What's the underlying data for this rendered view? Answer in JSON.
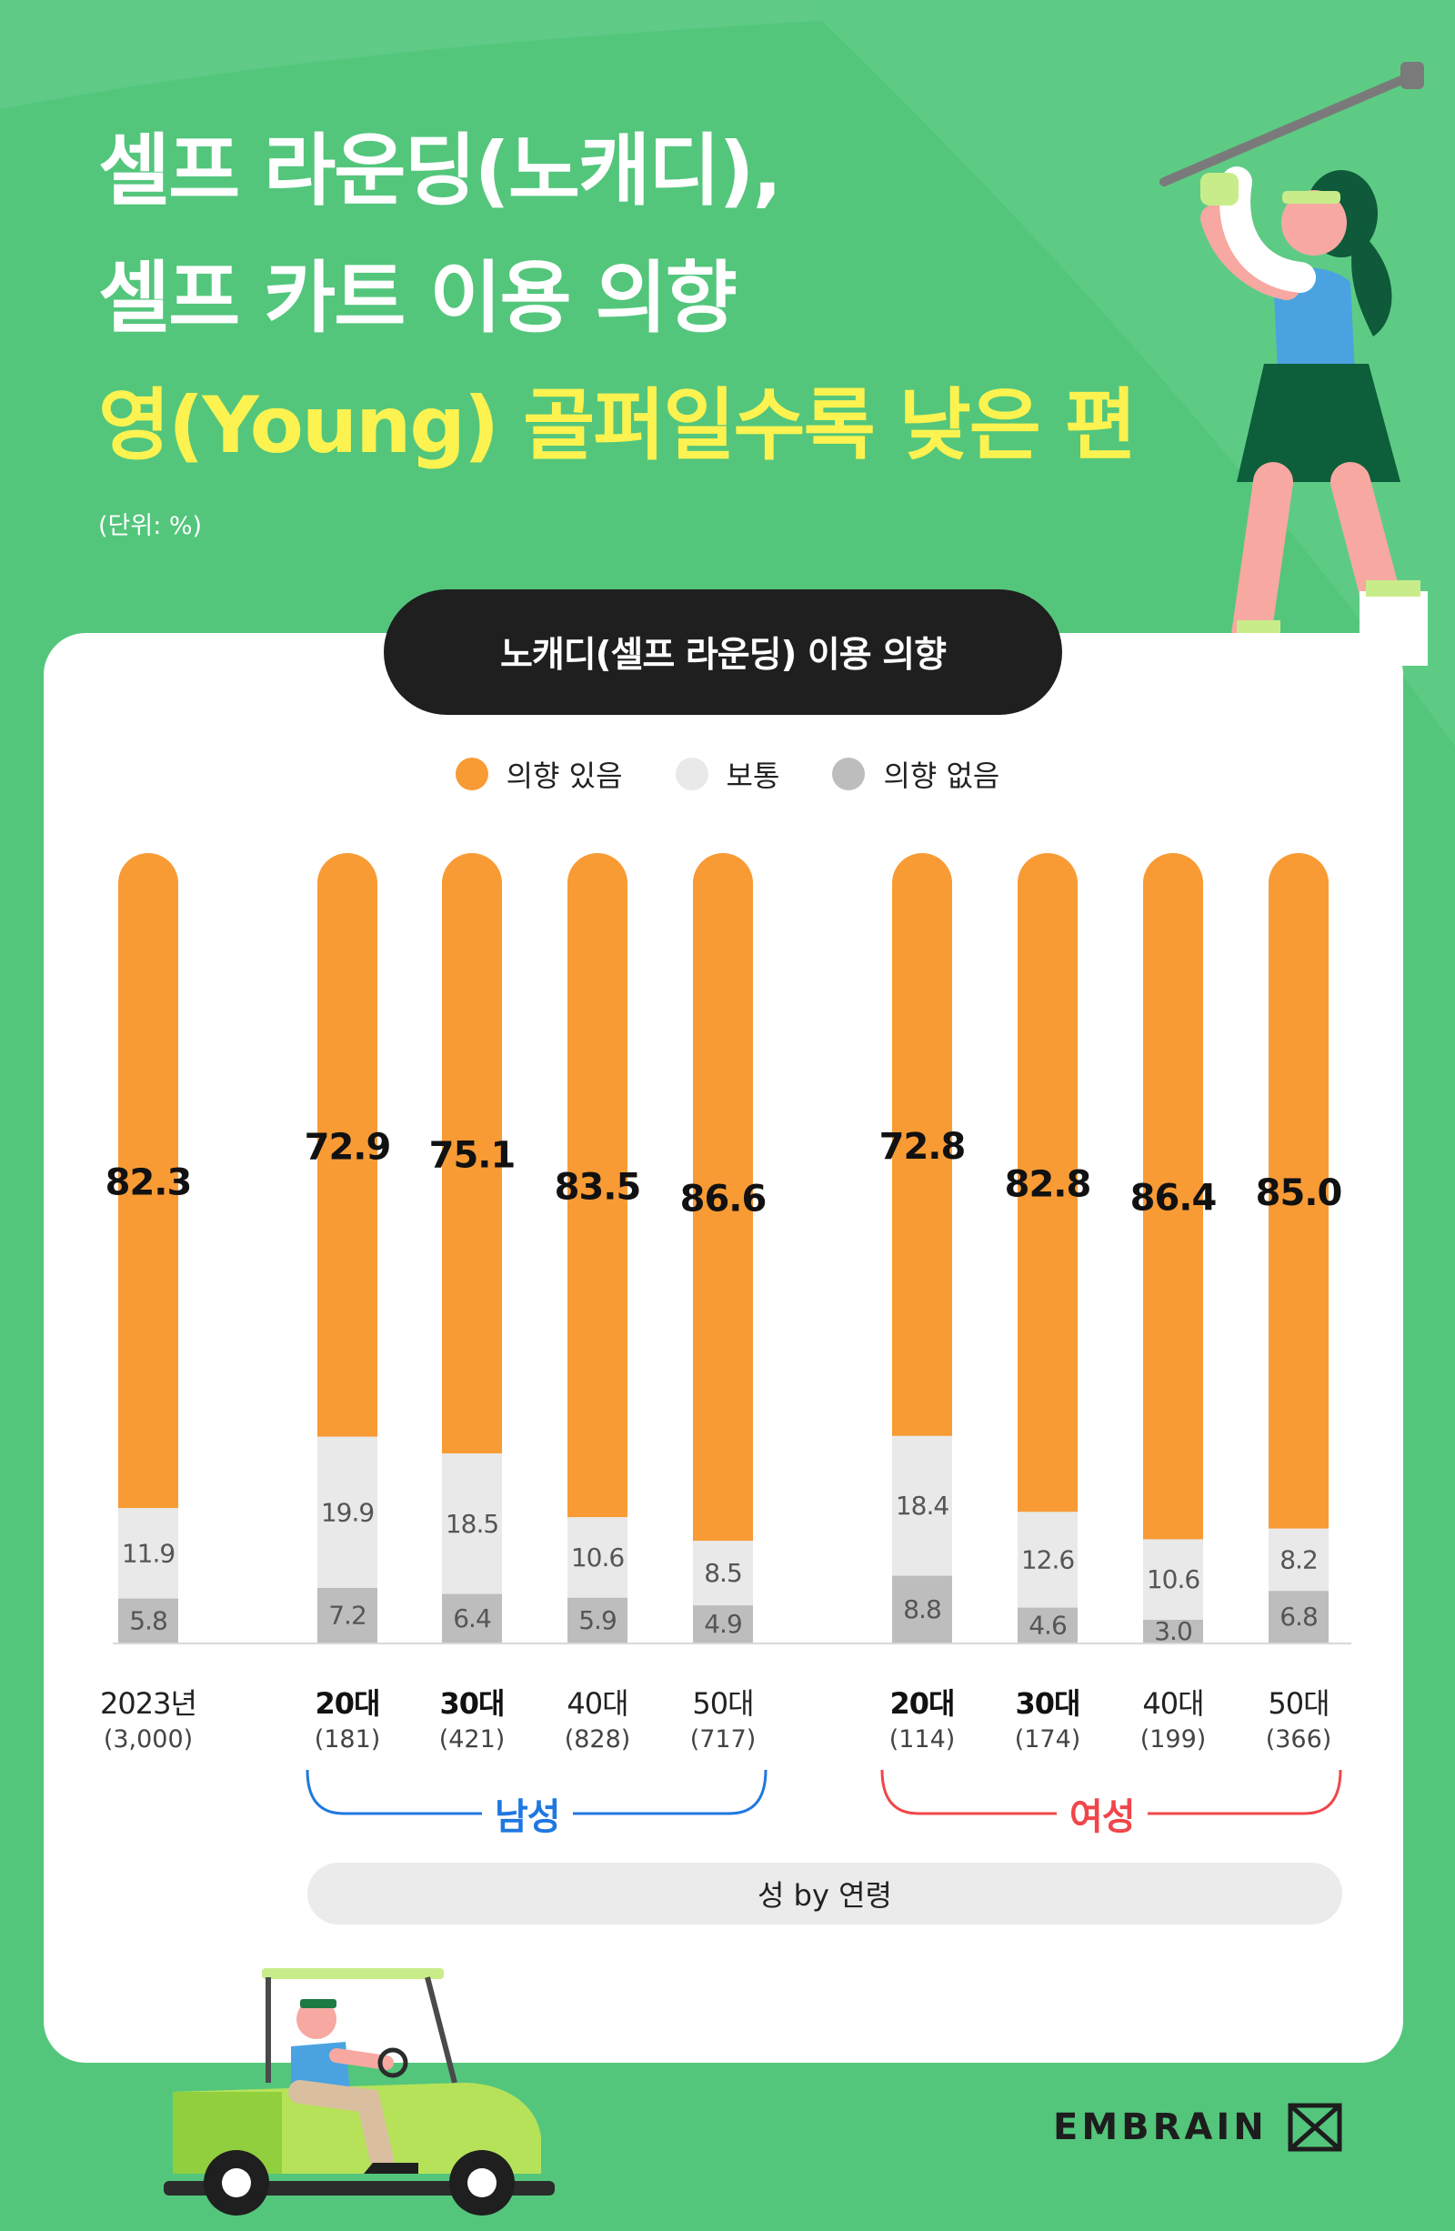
{
  "title": {
    "line1": "셀프 라운딩(노캐디),",
    "line2": "셀프 카트 이용 의향",
    "line3": "영(Young) 골퍼일수록 낮은 편"
  },
  "unit_note": "(단위: %)",
  "panel_title": "노캐디(셀프 라운딩) 이용 의향",
  "caption": "성 by 연령",
  "logo_text": "EMBRAIN",
  "colors": {
    "yes": "#f89b35",
    "neutral": "#e9e9e9",
    "no": "#bdbdbd",
    "male": "#1f78e0",
    "female": "#f0464a",
    "background": "#53c67c"
  },
  "chart_data": {
    "type": "bar",
    "stacked": true,
    "ylim": [
      0,
      100
    ],
    "grid": false,
    "legend_position": "top-center",
    "categories": [
      "2023년",
      "20대",
      "30대",
      "40대",
      "50대",
      "20대",
      "30대",
      "40대",
      "50대"
    ],
    "sample_sizes": [
      "(3,000)",
      "(181)",
      "(421)",
      "(828)",
      "(717)",
      "(114)",
      "(174)",
      "(199)",
      "(366)"
    ],
    "bold_categories": [
      false,
      true,
      true,
      false,
      false,
      true,
      true,
      false,
      false
    ],
    "groups": [
      {
        "name": "남성",
        "categories_index": [
          1,
          2,
          3,
          4
        ]
      },
      {
        "name": "여성",
        "categories_index": [
          5,
          6,
          7,
          8
        ]
      }
    ],
    "series": [
      {
        "name": "의향 있음",
        "color": "#f89b35",
        "values": [
          82.3,
          72.9,
          75.1,
          83.5,
          86.6,
          72.8,
          82.8,
          86.4,
          85.0
        ],
        "labels": [
          "82.3",
          "72.9",
          "75.1",
          "83.5",
          "86.6",
          "72.8",
          "82.8",
          "86.4",
          "85.0"
        ]
      },
      {
        "name": "보통",
        "color": "#e9e9e9",
        "values": [
          11.9,
          19.9,
          18.5,
          10.6,
          8.5,
          18.4,
          12.6,
          10.6,
          8.2
        ],
        "labels": [
          "11.9",
          "19.9",
          "18.5",
          "10.6",
          "8.5",
          "18.4",
          "12.6",
          "10.6",
          "8.2"
        ]
      },
      {
        "name": "의향 없음",
        "color": "#bdbdbd",
        "values": [
          5.8,
          7.2,
          6.4,
          5.9,
          4.9,
          8.8,
          4.6,
          3.0,
          6.8
        ],
        "labels": [
          "5.8",
          "7.2",
          "6.4",
          "5.9",
          "4.9",
          "8.8",
          "4.6",
          "3.0",
          "6.8"
        ]
      }
    ]
  }
}
